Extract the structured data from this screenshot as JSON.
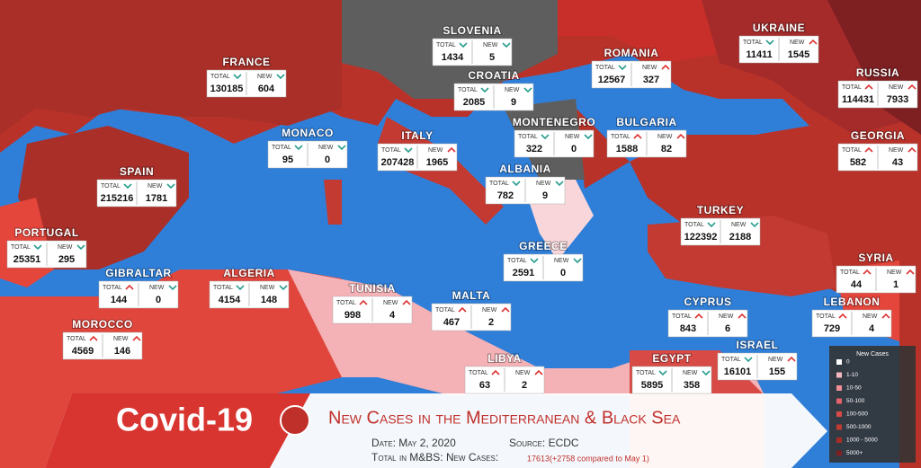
{
  "header": {
    "title": "Covid-19",
    "subtitle": "New Cases in the Mediterranean & Black Sea",
    "date": "Date: May 2, 2020",
    "source": "Source: ECDC",
    "total_label": "Total in M&BS: New Cases:",
    "total_value": "17613(+2758 compared to May 1)"
  },
  "box_labels": {
    "total": "Total",
    "new": "New"
  },
  "countries": [
    {
      "name": "Slovenia",
      "total": "1434",
      "new": "5",
      "total_trend": "down",
      "new_trend": "down"
    },
    {
      "name": "France",
      "total": "130185",
      "new": "604",
      "total_trend": "down",
      "new_trend": "down"
    },
    {
      "name": "Ukraine",
      "total": "11411",
      "new": "1545",
      "total_trend": "down",
      "new_trend": "up"
    },
    {
      "name": "Romania",
      "total": "12567",
      "new": "327",
      "total_trend": "down",
      "new_trend": "up"
    },
    {
      "name": "Croatia",
      "total": "2085",
      "new": "9",
      "total_trend": "down",
      "new_trend": "down"
    },
    {
      "name": "Russia",
      "total": "114431",
      "new": "7933",
      "total_trend": "up",
      "new_trend": "up"
    },
    {
      "name": "Monaco",
      "total": "95",
      "new": "0",
      "total_trend": "down",
      "new_trend": "down"
    },
    {
      "name": "Italy",
      "total": "207428",
      "new": "1965",
      "total_trend": "down",
      "new_trend": "up"
    },
    {
      "name": "Montenegro",
      "total": "322",
      "new": "0",
      "total_trend": "down",
      "new_trend": "down"
    },
    {
      "name": "Bulgaria",
      "total": "1588",
      "new": "82",
      "total_trend": "up",
      "new_trend": "up"
    },
    {
      "name": "Georgia",
      "total": "582",
      "new": "43",
      "total_trend": "up",
      "new_trend": "up"
    },
    {
      "name": "Spain",
      "total": "215216",
      "new": "1781",
      "total_trend": "down",
      "new_trend": "down"
    },
    {
      "name": "Albania",
      "total": "782",
      "new": "9",
      "total_trend": "down",
      "new_trend": "down"
    },
    {
      "name": "Turkey",
      "total": "122392",
      "new": "2188",
      "total_trend": "down",
      "new_trend": "down"
    },
    {
      "name": "Portugal",
      "total": "25351",
      "new": "295",
      "total_trend": "down",
      "new_trend": "down"
    },
    {
      "name": "Greece",
      "total": "2591",
      "new": "0",
      "total_trend": "down",
      "new_trend": "down"
    },
    {
      "name": "Gibraltar",
      "total": "144",
      "new": "0",
      "total_trend": "up",
      "new_trend": "down"
    },
    {
      "name": "Algeria",
      "total": "4154",
      "new": "148",
      "total_trend": "down",
      "new_trend": "down"
    },
    {
      "name": "Syria",
      "total": "44",
      "new": "1",
      "total_trend": "up",
      "new_trend": "up"
    },
    {
      "name": "Tunisia",
      "total": "998",
      "new": "4",
      "total_trend": "up",
      "new_trend": "up"
    },
    {
      "name": "Malta",
      "total": "467",
      "new": "2",
      "total_trend": "up",
      "new_trend": "up"
    },
    {
      "name": "Cyprus",
      "total": "843",
      "new": "6",
      "total_trend": "up",
      "new_trend": "up"
    },
    {
      "name": "Lebanon",
      "total": "729",
      "new": "4",
      "total_trend": "up",
      "new_trend": "up"
    },
    {
      "name": "Morocco",
      "total": "4569",
      "new": "146",
      "total_trend": "up",
      "new_trend": "up"
    },
    {
      "name": "Israel",
      "total": "16101",
      "new": "155",
      "total_trend": "down",
      "new_trend": "up"
    },
    {
      "name": "Egypt",
      "total": "5895",
      "new": "358",
      "total_trend": "down",
      "new_trend": "down"
    },
    {
      "name": "Libya",
      "total": "63",
      "new": "2",
      "total_trend": "up",
      "new_trend": "up"
    }
  ],
  "legend": {
    "title": "New Cases",
    "items": [
      "0",
      "1-10",
      "10-50",
      "50-100",
      "100-500",
      "500-1000",
      "1000 - 5000",
      "5000+"
    ],
    "colors": [
      "#ffffff",
      "#f6b7bd",
      "#f08e95",
      "#e5636a",
      "#d84a45",
      "#c23a32",
      "#a82c26",
      "#7e1f22"
    ]
  }
}
